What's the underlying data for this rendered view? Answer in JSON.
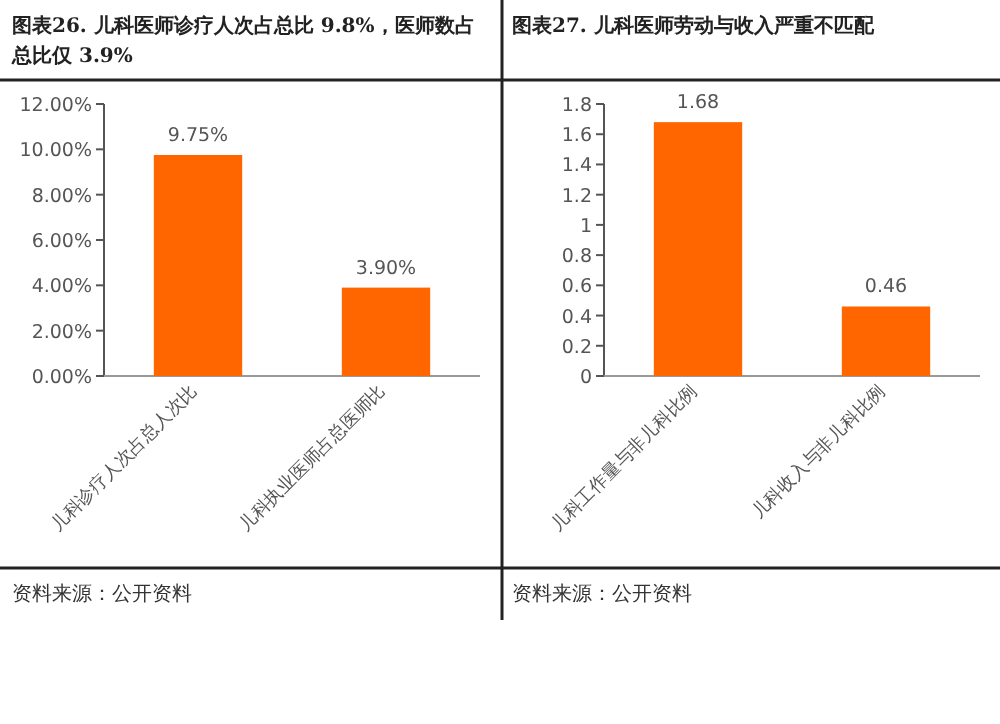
{
  "chart_data": [
    {
      "type": "bar",
      "title": "图表26.  儿科医师诊疗人次占总比 9.8%，医师数占总比仅 3.9%",
      "categories": [
        "儿科诊疗人次占总人次比",
        "儿科执业医师占总医师比"
      ],
      "series": [
        {
          "color": "#ff6600",
          "values": [
            9.75,
            3.9
          ]
        }
      ],
      "value_labels": [
        "9.75%",
        "3.90%"
      ],
      "ylim": [
        0,
        12
      ],
      "yticks": [
        {
          "value": 0,
          "label": "0.00%"
        },
        {
          "value": 2,
          "label": "2.00%"
        },
        {
          "value": 4,
          "label": "4.00%"
        },
        {
          "value": 6,
          "label": "6.00%"
        },
        {
          "value": 8,
          "label": "8.00%"
        },
        {
          "value": 10,
          "label": "10.00%"
        },
        {
          "value": 12,
          "label": "12.00%"
        }
      ],
      "annotations": [
        "资料来源：公开资料"
      ]
    },
    {
      "type": "bar",
      "title": "图表27.  儿科医师劳动与收入严重不匹配",
      "categories": [
        "儿科工作量与非儿科比例",
        "儿科收入与非儿科比例"
      ],
      "series": [
        {
          "color": "#ff6600",
          "values": [
            1.68,
            0.46
          ]
        }
      ],
      "value_labels": [
        "1.68",
        "0.46"
      ],
      "ylim": [
        0,
        1.8
      ],
      "yticks": [
        0,
        0.2,
        0.4,
        0.6,
        0.8,
        1,
        1.2,
        1.4,
        1.6,
        1.8
      ],
      "annotations": [
        "资料来源：公开资料"
      ]
    }
  ]
}
